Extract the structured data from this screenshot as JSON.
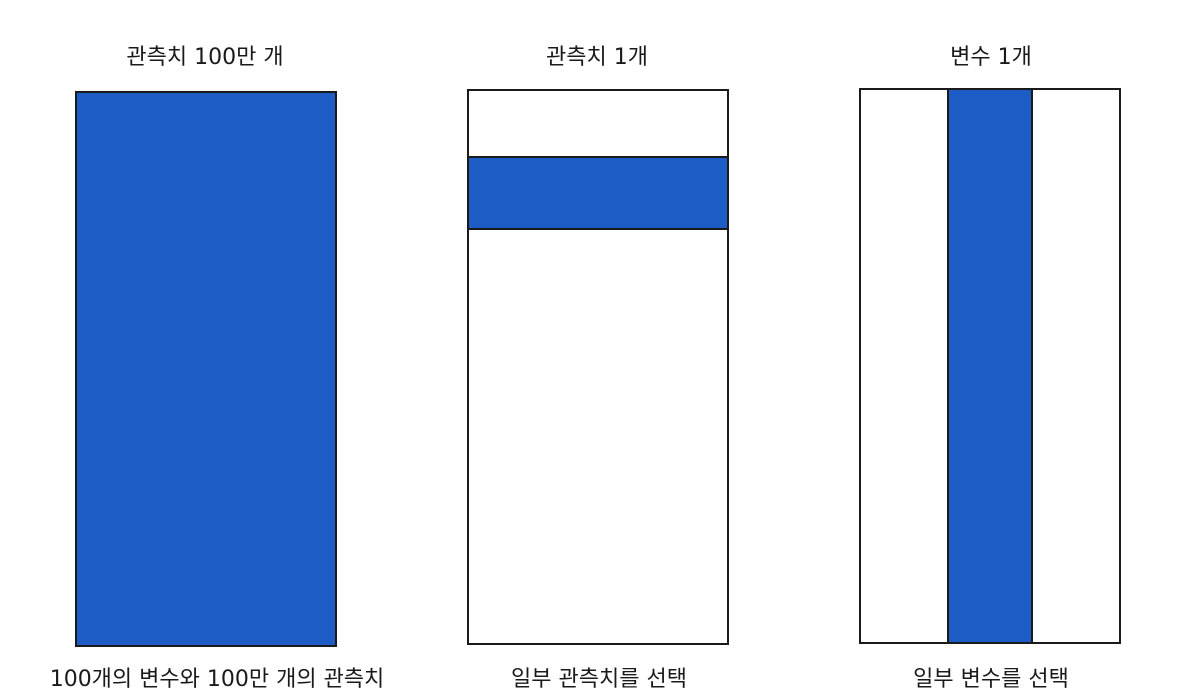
{
  "colors": {
    "fill": "#1c5cc4",
    "outline": "#1a1a1a"
  },
  "panels": [
    {
      "title": "관측치 100만 개",
      "caption": "100개의 변수와 100만 개의 관측치",
      "selection": "all"
    },
    {
      "title": "관측치 1개",
      "caption": "일부 관측치를 선택",
      "selection": "row"
    },
    {
      "title": "변수 1개",
      "caption": "일부 변수를 선택",
      "selection": "column"
    }
  ]
}
